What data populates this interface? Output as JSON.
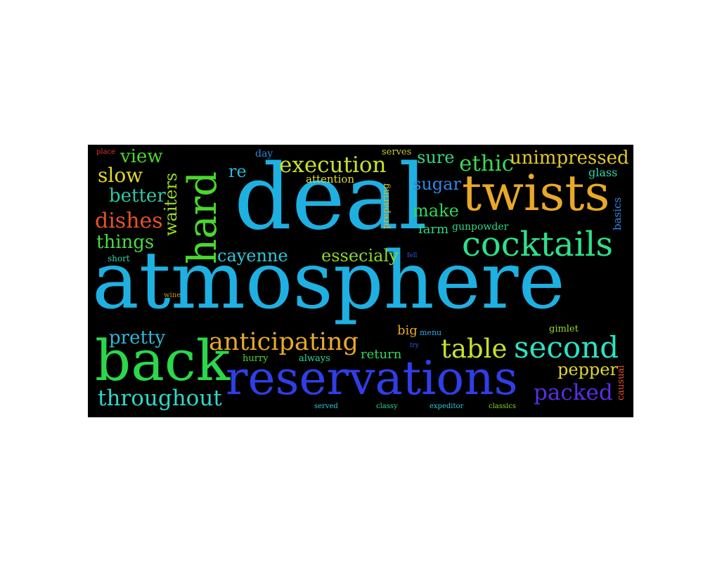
{
  "words": [
    {
      "key": "atmosphere",
      "text": "atmosphere",
      "color": "#1fb0e2"
    },
    {
      "key": "deal",
      "text": "deal",
      "color": "#1fb0e2"
    },
    {
      "key": "reservations",
      "text": "reservations",
      "color": "#2f3ee6"
    },
    {
      "key": "twists",
      "text": "twists",
      "color": "#e8a928"
    },
    {
      "key": "back",
      "text": "back",
      "color": "#2ad84a"
    },
    {
      "key": "hard",
      "text": "hard",
      "color": "#4ad82a"
    },
    {
      "key": "cocktails",
      "text": "cocktails",
      "color": "#2ee08a"
    },
    {
      "key": "second",
      "text": "second",
      "color": "#2ee2c2"
    },
    {
      "key": "anticipating",
      "text": "anticipating",
      "color": "#e8a928"
    },
    {
      "key": "throughout",
      "text": "throughout",
      "color": "#2ed8c8"
    },
    {
      "key": "table",
      "text": "table",
      "color": "#c8e02a"
    },
    {
      "key": "packed",
      "text": "packed",
      "color": "#5a2ee6"
    },
    {
      "key": "execution",
      "text": "execution",
      "color": "#c8e02a"
    },
    {
      "key": "ethic",
      "text": "ethic",
      "color": "#3ad858"
    },
    {
      "key": "unimpressed",
      "text": "unimpressed",
      "color": "#e0c82a"
    },
    {
      "key": "dishes",
      "text": "dishes",
      "color": "#e8502a"
    },
    {
      "key": "slow",
      "text": "slow",
      "color": "#e0d82a"
    },
    {
      "key": "cayenne",
      "text": "cayenne",
      "color": "#2ec8d8"
    },
    {
      "key": "essecialy",
      "text": "essecialy",
      "color": "#88d82a"
    },
    {
      "key": "pretty",
      "text": "pretty",
      "color": "#2eb8d8"
    },
    {
      "key": "things",
      "text": "things",
      "color": "#4ad84a"
    },
    {
      "key": "better",
      "text": "better",
      "color": "#2ec8a8"
    },
    {
      "key": "view",
      "text": "view",
      "color": "#4ad82a"
    },
    {
      "key": "waiters",
      "text": "waiters",
      "color": "#9ad82a"
    },
    {
      "key": "re",
      "text": "re",
      "color": "#2eb8d8"
    },
    {
      "key": "sure",
      "text": "sure",
      "color": "#2ed888"
    },
    {
      "key": "sugar",
      "text": "sugar",
      "color": "#2e88e6"
    },
    {
      "key": "make",
      "text": "make",
      "color": "#2ed858"
    },
    {
      "key": "farm",
      "text": "farm",
      "color": "#2ed888"
    },
    {
      "key": "pepper",
      "text": "pepper",
      "color": "#e0d82a"
    },
    {
      "key": "return",
      "text": "return",
      "color": "#2ed858"
    },
    {
      "key": "big",
      "text": "big",
      "color": "#e8a928"
    },
    {
      "key": "attention",
      "text": "attention",
      "color": "#e0d82a"
    },
    {
      "key": "preparing",
      "text": "preparing",
      "color": "#d8b82a"
    },
    {
      "key": "gunpowder",
      "text": "gunpowder",
      "color": "#2ed888"
    },
    {
      "key": "basics",
      "text": "basics",
      "color": "#2e88e6"
    },
    {
      "key": "glass",
      "text": "glass",
      "color": "#2ed8a8"
    },
    {
      "key": "day",
      "text": "day",
      "color": "#2e88d8"
    },
    {
      "key": "serves",
      "text": "serves",
      "color": "#c8c82a"
    },
    {
      "key": "place",
      "text": "place",
      "color": "#e8302a"
    },
    {
      "key": "short",
      "text": "short",
      "color": "#2ed8a8"
    },
    {
      "key": "wine",
      "text": "wine",
      "color": "#c89828"
    },
    {
      "key": "fell",
      "text": "fell",
      "color": "#2e58e6"
    },
    {
      "key": "hurry",
      "text": "hurry",
      "color": "#4ad82a"
    },
    {
      "key": "always",
      "text": "always",
      "color": "#2ed8a8"
    },
    {
      "key": "menu",
      "text": "menu",
      "color": "#2ea8e6"
    },
    {
      "key": "try",
      "text": "try",
      "color": "#2e58e6"
    },
    {
      "key": "gimlet",
      "text": "gimlet",
      "color": "#9ad82a"
    },
    {
      "key": "causual",
      "text": "causual",
      "color": "#e8502a"
    },
    {
      "key": "served",
      "text": "served",
      "color": "#2ec8d8"
    },
    {
      "key": "classy",
      "text": "classy",
      "color": "#2ed8a8"
    },
    {
      "key": "expeditor",
      "text": "expeditor",
      "color": "#2ec8d8"
    },
    {
      "key": "classics",
      "text": "classics",
      "color": "#88d82a"
    }
  ]
}
